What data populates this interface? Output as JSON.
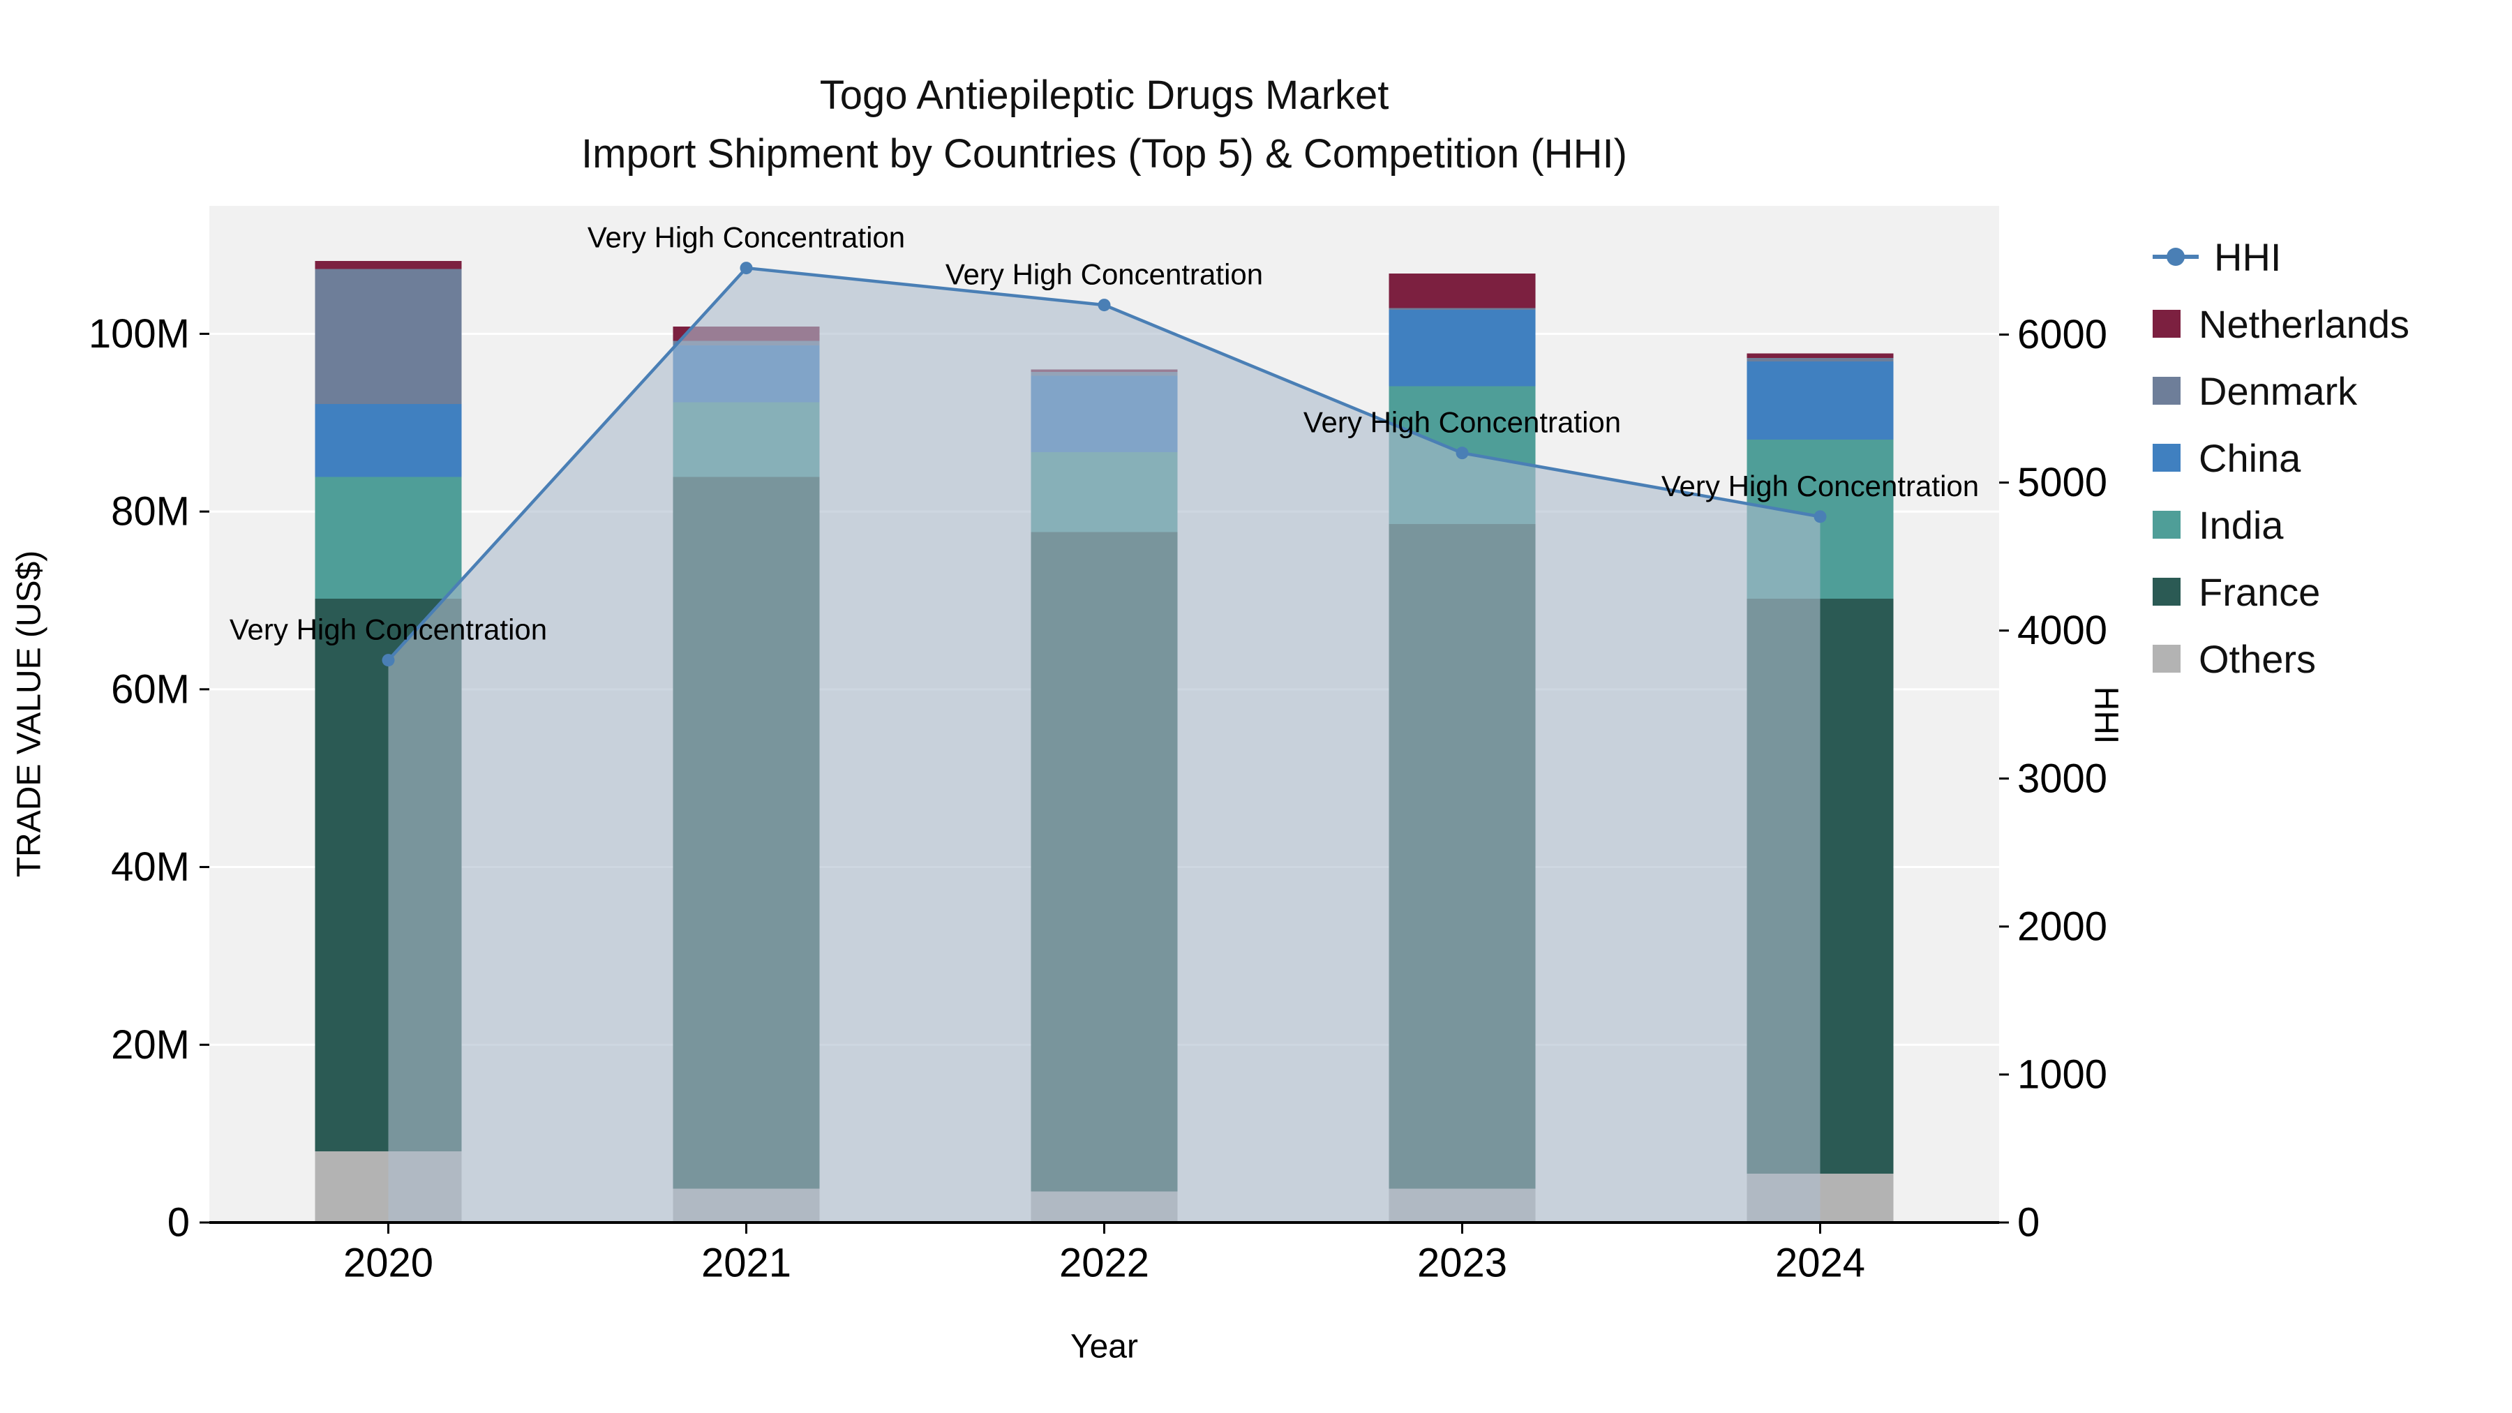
{
  "title": {
    "line1": "Togo Antiepileptic Drugs Market",
    "line2": "Import Shipment by Countries (Top 5) & Competition (HHI)"
  },
  "axes": {
    "x_label": "Year",
    "y_left_label": "TRADE VALUE (US$)",
    "y_right_label": "HHI",
    "y_left_ticks": [
      {
        "label": "0",
        "value": 0
      },
      {
        "label": "20M",
        "value": 20
      },
      {
        "label": "40M",
        "value": 40
      },
      {
        "label": "60M",
        "value": 60
      },
      {
        "label": "80M",
        "value": 80
      },
      {
        "label": "100M",
        "value": 100
      }
    ],
    "y_left_max": 114.4,
    "y_right_ticks": [
      {
        "label": "0",
        "value": 0
      },
      {
        "label": "1000",
        "value": 1000
      },
      {
        "label": "2000",
        "value": 2000
      },
      {
        "label": "3000",
        "value": 3000
      },
      {
        "label": "4000",
        "value": 4000
      },
      {
        "label": "5000",
        "value": 5000
      },
      {
        "label": "6000",
        "value": 6000
      }
    ],
    "y_right_max": 6870
  },
  "chart_data": {
    "type": "bar",
    "subtype": "stacked-bar-with-line-overlay",
    "categories": [
      "2020",
      "2021",
      "2022",
      "2023",
      "2024"
    ],
    "bar_value_unit": "million US$",
    "series": [
      {
        "name": "Others",
        "color": "#b3b3b3",
        "values": [
          8.0,
          3.8,
          3.5,
          3.8,
          5.5
        ]
      },
      {
        "name": "France",
        "color": "#2b5a54",
        "values": [
          62.2,
          80.1,
          74.2,
          74.8,
          64.7
        ]
      },
      {
        "name": "India",
        "color": "#4f9e98",
        "values": [
          13.7,
          8.4,
          9.0,
          15.5,
          17.9
        ]
      },
      {
        "name": "China",
        "color": "#4080c0",
        "values": [
          8.2,
          6.4,
          8.6,
          8.6,
          8.8
        ]
      },
      {
        "name": "Denmark",
        "color": "#6e7e99",
        "values": [
          15.2,
          0.5,
          0.4,
          0.2,
          0.4
        ]
      },
      {
        "name": "Netherlands",
        "color": "#7c2040",
        "values": [
          0.9,
          1.6,
          0.3,
          3.9,
          0.5
        ]
      }
    ],
    "line": {
      "name": "HHI",
      "axis": "right",
      "color": "#4a7fb5",
      "fill_color": "rgba(174,188,205,0.6)",
      "values": [
        3800,
        6450,
        6200,
        5200,
        4770
      ]
    },
    "annotations": [
      {
        "year": "2020",
        "text": "Very High Concentration"
      },
      {
        "year": "2021",
        "text": "Very High Concentration"
      },
      {
        "year": "2022",
        "text": "Very High Concentration"
      },
      {
        "year": "2023",
        "text": "Very High Concentration"
      },
      {
        "year": "2024",
        "text": "Very High Concentration"
      }
    ],
    "legend_position": "right",
    "grid": true,
    "plot_background": "#f1f1f1"
  },
  "legend": {
    "items": [
      {
        "label": "HHI",
        "type": "line",
        "color": "#4a7fb5"
      },
      {
        "label": "Netherlands",
        "type": "square",
        "color": "#7c2040"
      },
      {
        "label": "Denmark",
        "type": "square",
        "color": "#6e7e99"
      },
      {
        "label": "China",
        "type": "square",
        "color": "#4080c0"
      },
      {
        "label": "India",
        "type": "square",
        "color": "#4f9e98"
      },
      {
        "label": "France",
        "type": "square",
        "color": "#2b5a54"
      },
      {
        "label": "Others",
        "type": "square",
        "color": "#b3b3b3"
      }
    ]
  }
}
